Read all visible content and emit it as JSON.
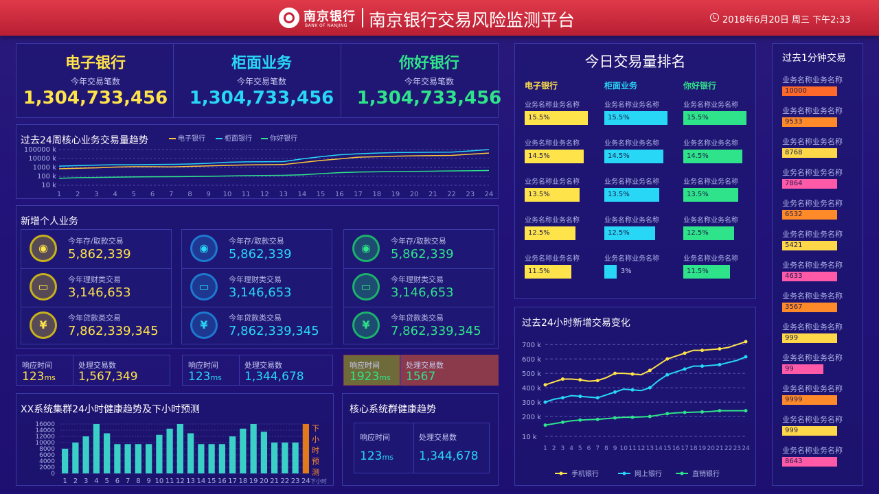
{
  "header": {
    "bank_cn": "南京银行",
    "bank_en": "BANK OF NANJING",
    "title": "南京银行交易风险监测平台",
    "datetime": "2018年6月20日 周三 下午2:33"
  },
  "kpis": [
    {
      "title": "电子银行",
      "subtitle": "今年交易笔数",
      "value": "1,304,733,456",
      "color": "#ffe34a"
    },
    {
      "title": "柜面业务",
      "subtitle": "今年交易笔数",
      "value": "1,304,733,456",
      "color": "#28d7f5"
    },
    {
      "title": "你好银行",
      "subtitle": "今年交易笔数",
      "value": "1,304,733,456",
      "color": "#2fe38a"
    }
  ],
  "trend24w": {
    "title": "过去24周核心业务交易量趋势",
    "legend": [
      "电子银行",
      "柜面银行",
      "你好银行"
    ],
    "y_ticks": [
      "100000 k",
      "10000 k",
      "1000 k",
      "100 k",
      "10 k"
    ],
    "x_ticks": [
      "1",
      "2",
      "3",
      "4",
      "5",
      "6",
      "7",
      "8",
      "9",
      "10",
      "11",
      "12",
      "13",
      "14",
      "15",
      "16",
      "17",
      "18",
      "19",
      "20",
      "21",
      "22",
      "23",
      "24"
    ]
  },
  "chart_data": [
    {
      "type": "line",
      "title": "过去24周核心业务交易量趋势",
      "x": [
        1,
        2,
        3,
        4,
        5,
        6,
        7,
        8,
        9,
        10,
        11,
        12,
        13,
        14,
        15,
        16,
        17,
        18,
        19,
        20,
        21,
        22,
        23,
        24
      ],
      "yscale": "log",
      "y_ticks": [
        "10 k",
        "100 k",
        "1000 k",
        "10000 k",
        "100000 k"
      ],
      "series": [
        {
          "name": "电子银行",
          "color": "#ffc93a",
          "values": [
            700,
            800,
            900,
            1100,
            1200,
            1200,
            1150,
            1300,
            1500,
            1700,
            1900,
            2000,
            2100,
            3500,
            6000,
            9000,
            14000,
            16000,
            18000,
            20000,
            21000,
            22000,
            30000,
            40000
          ]
        },
        {
          "name": "柜面银行",
          "color": "#28d7f5",
          "values": [
            1400,
            1600,
            1800,
            2000,
            2000,
            2100,
            2200,
            2400,
            2900,
            3800,
            4200,
            4300,
            4500,
            9000,
            16000,
            26000,
            34000,
            40000,
            46000,
            48000,
            50000,
            52000,
            70000,
            100000
          ]
        },
        {
          "name": "你好银行",
          "color": "#2fe38a",
          "values": [
            60,
            70,
            75,
            80,
            85,
            90,
            92,
            95,
            100,
            110,
            120,
            125,
            130,
            150,
            200,
            260,
            300,
            320,
            340,
            360,
            380,
            400,
            420,
            450
          ]
        }
      ]
    },
    {
      "type": "bar",
      "title": "XX系统集群24小时健康趋势及下小时预测",
      "categories": [
        "1",
        "2",
        "3",
        "4",
        "5",
        "6",
        "7",
        "8",
        "9",
        "10",
        "11",
        "12",
        "13",
        "14",
        "15",
        "16",
        "17",
        "18",
        "19",
        "20",
        "21",
        "22",
        "23",
        "24"
      ],
      "values": [
        8000,
        10000,
        12000,
        16000,
        13000,
        9500,
        9500,
        9500,
        9500,
        12500,
        14500,
        16000,
        13000,
        9500,
        9500,
        9500,
        12000,
        14500,
        16000,
        13500,
        10000,
        10000,
        10000,
        16000
      ],
      "ylim": [
        0,
        16000
      ],
      "y_ticks": [
        "0",
        "2000",
        "4000",
        "6000",
        "8000",
        "10000",
        "12000",
        "14000",
        "16000"
      ],
      "forecast_label": "下小时预测",
      "forecast_tick": "下小时"
    },
    {
      "type": "line",
      "title": "过去24小时新增交易变化",
      "x": [
        1,
        2,
        3,
        4,
        5,
        6,
        7,
        8,
        9,
        10,
        11,
        12,
        13,
        14,
        15,
        16,
        17,
        18,
        19,
        20,
        21,
        22,
        23,
        24
      ],
      "y_ticks": [
        "10 k",
        "200 k",
        "300 k",
        "400 k",
        "500 k",
        "600 k",
        "700 k"
      ],
      "series": [
        {
          "name": "手机银行",
          "color": "#ffe34a",
          "values": [
            420,
            440,
            460,
            460,
            455,
            445,
            450,
            470,
            500,
            500,
            495,
            490,
            520,
            560,
            600,
            620,
            640,
            660,
            660,
            665,
            670,
            680,
            700,
            720
          ]
        },
        {
          "name": "网上银行",
          "color": "#28d7f5",
          "values": [
            300,
            320,
            330,
            345,
            340,
            335,
            330,
            350,
            370,
            390,
            385,
            380,
            400,
            450,
            490,
            510,
            530,
            550,
            550,
            555,
            560,
            575,
            590,
            615
          ]
        },
        {
          "name": "直销银行",
          "color": "#2fe38a",
          "values": [
            140,
            150,
            160,
            170,
            175,
            178,
            180,
            185,
            190,
            195,
            195,
            197,
            200,
            210,
            220,
            225,
            228,
            230,
            232,
            235,
            240,
            240,
            240,
            240
          ]
        }
      ]
    }
  ],
  "new_personal": {
    "title": "新增个人业务",
    "columns": [
      {
        "color": "#ffe34a",
        "ring": "#c8b21a",
        "rows": [
          {
            "icon": "user-add-icon",
            "label": "今年存/取款交易",
            "value": "5,862,339"
          },
          {
            "icon": "card-icon",
            "label": "今年理财类交易",
            "value": "3,146,653"
          },
          {
            "icon": "yen-icon",
            "label": "今年贷款类交易",
            "value": "7,862,339,345"
          }
        ]
      },
      {
        "color": "#28d7f5",
        "ring": "#1d7ad0",
        "rows": [
          {
            "icon": "user-add-icon",
            "label": "今年存/取款交易",
            "value": "5,862,339"
          },
          {
            "icon": "card-icon",
            "label": "今年理财类交易",
            "value": "3,146,653"
          },
          {
            "icon": "yen-icon",
            "label": "今年贷款类交易",
            "value": "7,862,339,345"
          }
        ]
      },
      {
        "color": "#2fe38a",
        "ring": "#1bb36b",
        "rows": [
          {
            "icon": "user-add-icon",
            "label": "今年存/取款交易",
            "value": "5,862,339"
          },
          {
            "icon": "card-icon",
            "label": "今年理财类交易",
            "value": "3,146,653"
          },
          {
            "icon": "yen-icon",
            "label": "今年贷款类交易",
            "value": "7,862,339,345"
          }
        ]
      }
    ]
  },
  "response_boxes": [
    {
      "rt_label": "响应时间",
      "rt_value": "123",
      "rt_unit": "ms",
      "tx_label": "处理交易数",
      "tx_value": "1,567,349",
      "color": "#ffe34a"
    },
    {
      "rt_label": "响应时间",
      "rt_value": "123",
      "rt_unit": "ms",
      "tx_label": "处理交易数",
      "tx_value": "1,344,678",
      "color": "#28d7f5"
    },
    {
      "rt_label": "响应时间",
      "rt_value": "1923",
      "rt_unit": "ms",
      "tx_label": "处理交易数",
      "tx_value": "1567",
      "color": "#2fe38a",
      "alert": true
    }
  ],
  "core_health": {
    "title": "核心系统群健康趋势",
    "rt_label": "响应时间",
    "rt_value": "123",
    "rt_unit": "ms",
    "tx_label": "处理交易数",
    "tx_value": "1,344,678"
  },
  "ranking": {
    "title": "今日交易量排名",
    "columns": [
      {
        "title": "电子银行",
        "color": "#ffe34a",
        "items": [
          {
            "name": "业务名称业务名称",
            "value": "15.5%",
            "pct": 15.5
          },
          {
            "name": "业务名称业务名称",
            "value": "14.5%",
            "pct": 14.5
          },
          {
            "name": "业务名称业务名称",
            "value": "13.5%",
            "pct": 13.5
          },
          {
            "name": "业务名称业务名称",
            "value": "12.5%",
            "pct": 12.5
          },
          {
            "name": "业务名称业务名称",
            "value": "11.5%",
            "pct": 11.5
          }
        ]
      },
      {
        "title": "柜面业务",
        "color": "#28d7f5",
        "items": [
          {
            "name": "业务名称业务名称",
            "value": "15.5%",
            "pct": 15.5
          },
          {
            "name": "业务名称业务名称",
            "value": "14.5%",
            "pct": 14.5
          },
          {
            "name": "业务名称业务名称",
            "value": "13.5%",
            "pct": 13.5
          },
          {
            "name": "业务名称业务名称",
            "value": "12.5%",
            "pct": 12.5
          },
          {
            "name": "业务名称业务名称",
            "value": "3%",
            "pct": 3
          }
        ]
      },
      {
        "title": "你好银行",
        "color": "#2fe38a",
        "items": [
          {
            "name": "业务名称业务名称",
            "value": "15.5%",
            "pct": 15.5
          },
          {
            "name": "业务名称业务名称",
            "value": "14.5%",
            "pct": 14.5
          },
          {
            "name": "业务名称业务名称",
            "value": "13.5%",
            "pct": 13.5
          },
          {
            "name": "业务名称业务名称",
            "value": "12.5%",
            "pct": 12.5
          },
          {
            "name": "业务名称业务名称",
            "value": "11.5%",
            "pct": 11.5
          }
        ]
      }
    ]
  },
  "new_tx_24h": {
    "title": "过去24小时新增交易变化",
    "legend": [
      "手机银行",
      "网上银行",
      "直销银行"
    ]
  },
  "last_minute": {
    "title": "过去1分钟交易",
    "items": [
      {
        "name": "业务名称业务名称",
        "value": "10000",
        "color": "#ff6a2a"
      },
      {
        "name": "业务名称业务名称",
        "value": "9533",
        "color": "#ff8a2a"
      },
      {
        "name": "业务名称业务名称",
        "value": "8768",
        "color": "#ffd84a"
      },
      {
        "name": "业务名称业务名称",
        "value": "7864",
        "color": "#ff5aa8"
      },
      {
        "name": "业务名称业务名称",
        "value": "6532",
        "color": "#ff8a2a"
      },
      {
        "name": "业务名称业务名称",
        "value": "5421",
        "color": "#ffd84a"
      },
      {
        "name": "业务名称业务名称",
        "value": "4633",
        "color": "#ff5aa8"
      },
      {
        "name": "业务名称业务名称",
        "value": "3567",
        "color": "#ff8a2a"
      },
      {
        "name": "业务名称业务名称",
        "value": "999",
        "color": "#ffd84a"
      },
      {
        "name": "业务名称业务名称",
        "value": "99",
        "color": "#ff5aa8"
      },
      {
        "name": "业务名称业务名称",
        "value": "9999",
        "color": "#ff8a2a"
      },
      {
        "name": "业务名称业务名称",
        "value": "999",
        "color": "#ffd84a"
      },
      {
        "name": "业务名称业务名称",
        "value": "8643",
        "color": "#ff5aa8"
      }
    ]
  }
}
